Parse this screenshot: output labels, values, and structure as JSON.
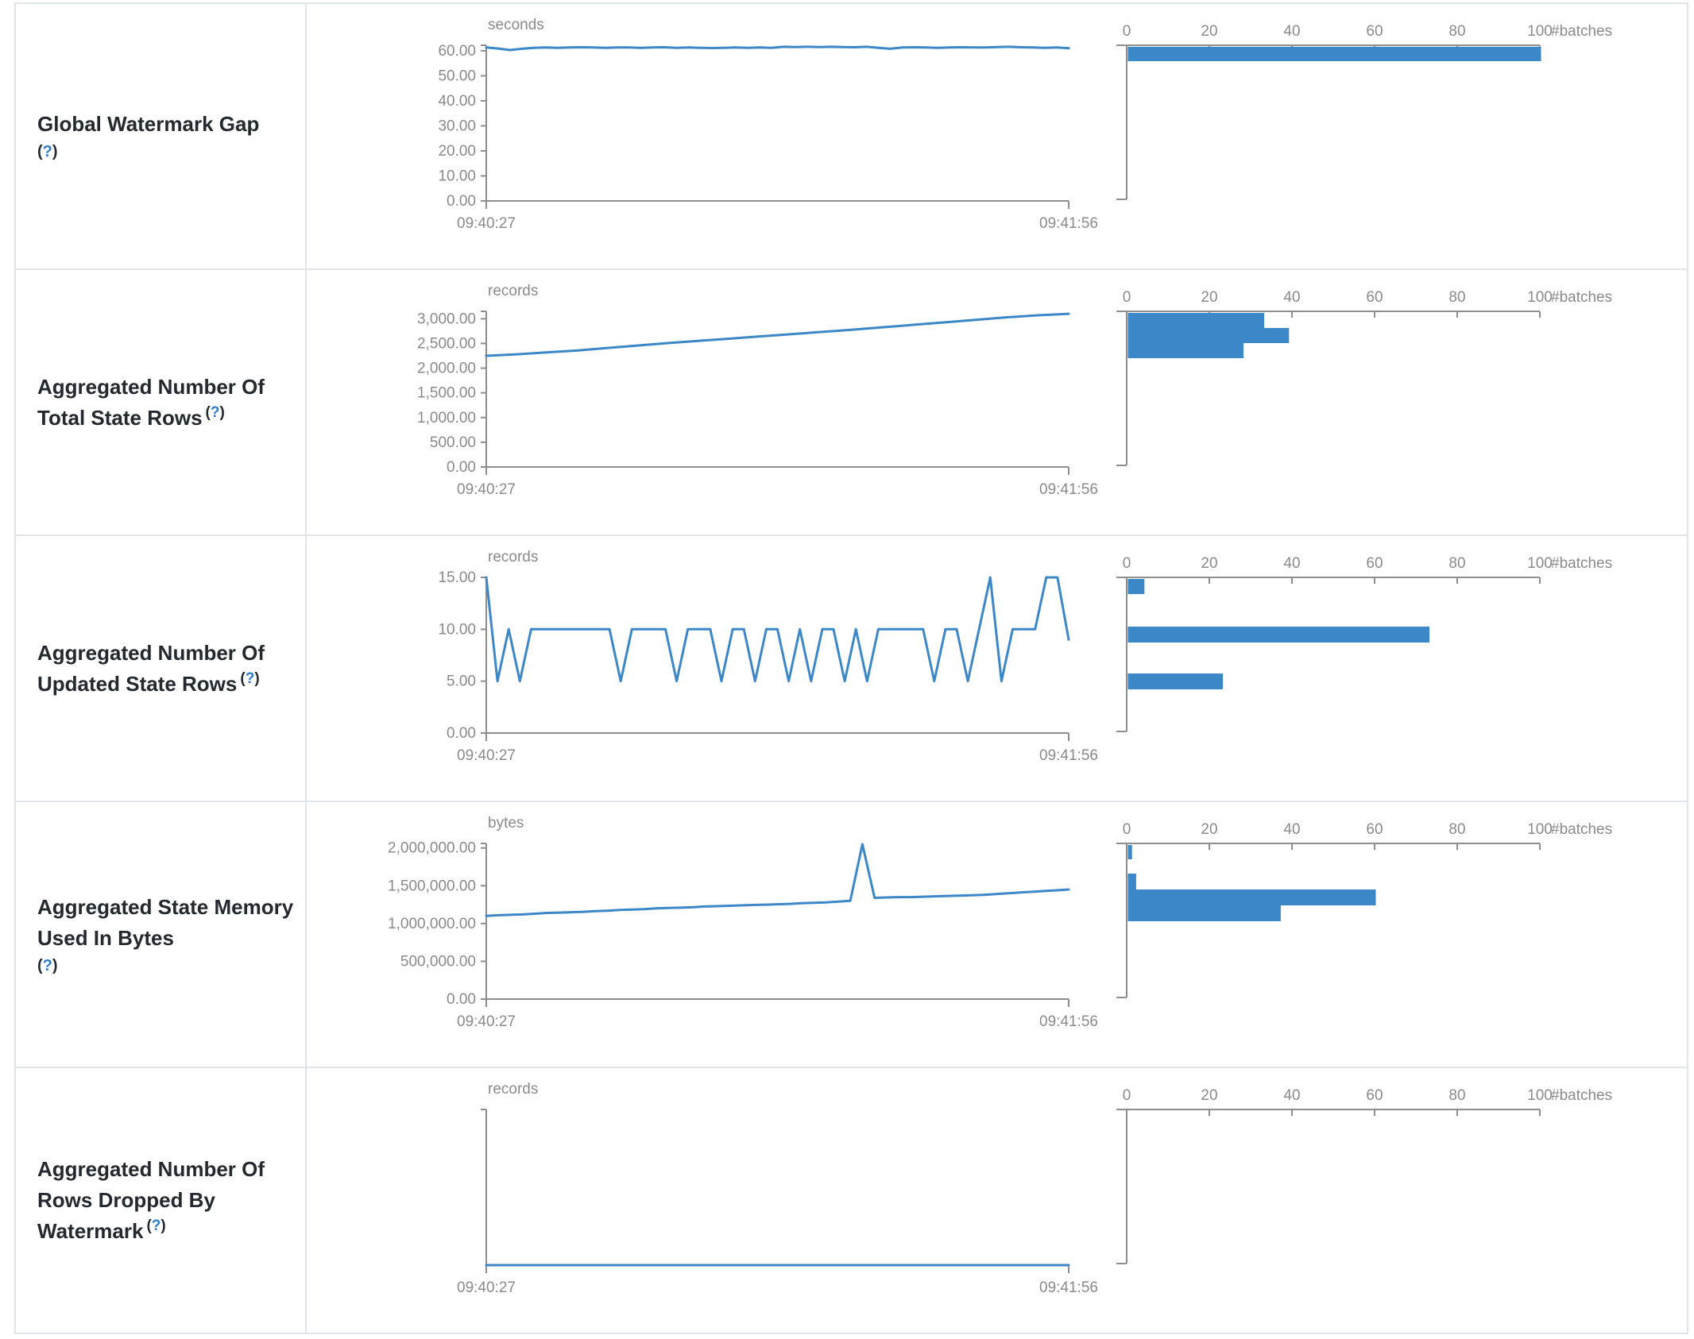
{
  "page": {
    "title": "Streaming Query Statistics"
  },
  "colors": {
    "accent": "#3c87c7",
    "axis": "#8e8e8e",
    "tick_text": "#8a8a8a",
    "label_text": "#24292f",
    "help_blue": "#2d7cd1",
    "border": "#e1e4e9"
  },
  "time_axis": {
    "start": "09:40:27",
    "end": "09:41:56"
  },
  "rows": [
    {
      "key": "global-watermark-gap",
      "label": "Global Watermark Gap",
      "help": "(?)",
      "help_placement": "block",
      "charts": {
        "line": {
          "type": "line",
          "unit": "seconds",
          "x_start": "09:40:27",
          "x_end": "09:41:56",
          "y_max": 62.2,
          "y_ticks": [
            {
              "value": 0,
              "label": "0.00"
            },
            {
              "value": 10,
              "label": "10.00"
            },
            {
              "value": 20,
              "label": "20.00"
            },
            {
              "value": 30,
              "label": "30.00"
            },
            {
              "value": 40,
              "label": "40.00"
            },
            {
              "value": 50,
              "label": "50.00"
            },
            {
              "value": 60,
              "label": "60.00"
            }
          ],
          "values": [
            61.3,
            60.9,
            60.3,
            60.8,
            61.2,
            61.3,
            61.2,
            61.3,
            61.4,
            61.3,
            61.2,
            61.3,
            61.3,
            61.2,
            61.3,
            61.4,
            61.2,
            61.3,
            61.2,
            61.1,
            61.2,
            61.3,
            61.2,
            61.3,
            61.2,
            61.6,
            61.5,
            61.6,
            61.5,
            61.6,
            61.5,
            61.4,
            61.6,
            61.2,
            60.8,
            61.3,
            61.4,
            61.3,
            61.2,
            61.3,
            61.4,
            61.3,
            61.3,
            61.5,
            61.6,
            61.4,
            61.3,
            61.2,
            61.3,
            61.0
          ]
        },
        "histogram": {
          "type": "bar",
          "x_label": "#batches",
          "x_ticks": [
            0,
            20,
            40,
            60,
            80,
            100
          ],
          "x_max": 100,
          "bars": [
            {
              "count": 100,
              "top": 54,
              "h": 18
            }
          ]
        }
      }
    },
    {
      "key": "aggregated-number-of-total-state-rows",
      "label": "Aggregated Number Of Total State Rows",
      "help": "(?)",
      "help_placement": "inline",
      "charts": {
        "line": {
          "type": "line",
          "unit": "records",
          "x_start": "09:40:27",
          "x_end": "09:41:56",
          "y_max": 3150,
          "y_ticks": [
            {
              "value": 0,
              "label": "0.00"
            },
            {
              "value": 500,
              "label": "500.00"
            },
            {
              "value": 1000,
              "label": "1,000.00"
            },
            {
              "value": 1500,
              "label": "1,500.00"
            },
            {
              "value": 2000,
              "label": "2,000.00"
            },
            {
              "value": 2500,
              "label": "2,500.00"
            },
            {
              "value": 3000,
              "label": "3,000.00"
            }
          ],
          "values": [
            2250,
            2280,
            2320,
            2360,
            2410,
            2460,
            2510,
            2555,
            2600,
            2645,
            2690,
            2735,
            2780,
            2830,
            2880,
            2930,
            2980,
            3030,
            3070,
            3100
          ]
        },
        "histogram": {
          "type": "bar",
          "x_label": "#batches",
          "x_ticks": [
            0,
            20,
            40,
            60,
            80,
            100
          ],
          "x_max": 100,
          "bars": [
            {
              "count": 33,
              "top": 54,
              "h": 19
            },
            {
              "count": 39,
              "top": 73,
              "h": 19
            },
            {
              "count": 28,
              "top": 92,
              "h": 19
            }
          ]
        }
      }
    },
    {
      "key": "aggregated-number-of-updated-state-rows",
      "label": "Aggregated Number Of Updated State Rows",
      "help": "(?)",
      "help_placement": "inline",
      "charts": {
        "line": {
          "type": "line",
          "unit": "records",
          "x_start": "09:40:27",
          "x_end": "09:41:56",
          "y_max": 15,
          "y_ticks": [
            {
              "value": 0,
              "label": "0.00"
            },
            {
              "value": 5,
              "label": "5.00"
            },
            {
              "value": 10,
              "label": "10.00"
            },
            {
              "value": 15,
              "label": "15.00"
            }
          ],
          "values": [
            15,
            5,
            10,
            5,
            10,
            10,
            10,
            10,
            10,
            10,
            10,
            10,
            5,
            10,
            10,
            10,
            10,
            5,
            10,
            10,
            10,
            5,
            10,
            10,
            5,
            10,
            10,
            5,
            10,
            5,
            10,
            10,
            5,
            10,
            5,
            10,
            10,
            10,
            10,
            10,
            5,
            10,
            10,
            5,
            10,
            15,
            5,
            10,
            10,
            10,
            15,
            15,
            9
          ]
        },
        "histogram": {
          "type": "bar",
          "x_label": "#batches",
          "x_ticks": [
            0,
            20,
            40,
            60,
            80,
            100
          ],
          "x_max": 100,
          "bars": [
            {
              "count": 4,
              "top": 54,
              "h": 19
            },
            {
              "count": 73,
              "top": 114,
              "h": 20
            },
            {
              "count": 23,
              "top": 173,
              "h": 20
            }
          ]
        }
      }
    },
    {
      "key": "aggregated-state-memory-used-in-bytes",
      "label": "Aggregated State Memory Used In Bytes",
      "help": "(?)",
      "help_placement": "block",
      "charts": {
        "line": {
          "type": "line",
          "unit": "bytes",
          "x_start": "09:40:27",
          "x_end": "09:41:56",
          "y_max": 2060000,
          "y_ticks": [
            {
              "value": 0,
              "label": "0.00"
            },
            {
              "value": 500000,
              "label": "500,000.00"
            },
            {
              "value": 1000000,
              "label": "1,000,000.00"
            },
            {
              "value": 1500000,
              "label": "1,500,000.00"
            },
            {
              "value": 2000000,
              "label": "2,000,000.00"
            }
          ],
          "values": [
            1100000,
            1110000,
            1115000,
            1120000,
            1130000,
            1140000,
            1145000,
            1150000,
            1155000,
            1165000,
            1170000,
            1180000,
            1185000,
            1190000,
            1200000,
            1205000,
            1210000,
            1215000,
            1225000,
            1230000,
            1235000,
            1240000,
            1245000,
            1250000,
            1255000,
            1260000,
            1270000,
            1275000,
            1280000,
            1290000,
            1300000,
            2050000,
            1340000,
            1345000,
            1350000,
            1350000,
            1355000,
            1360000,
            1365000,
            1370000,
            1375000,
            1380000,
            1390000,
            1400000,
            1410000,
            1420000,
            1430000,
            1440000,
            1450000
          ]
        },
        "histogram": {
          "type": "bar",
          "x_label": "#batches",
          "x_ticks": [
            0,
            20,
            40,
            60,
            80,
            100
          ],
          "x_max": 100,
          "bars": [
            {
              "count": 1,
              "top": 54,
              "h": 18
            },
            {
              "count": 2,
              "top": 90,
              "h": 20
            },
            {
              "count": 60,
              "top": 110,
              "h": 20
            },
            {
              "count": 37,
              "top": 130,
              "h": 20
            }
          ]
        }
      }
    },
    {
      "key": "aggregated-number-of-rows-dropped-by-watermark",
      "label": "Aggregated Number Of Rows Dropped By Watermark",
      "help": "(?)",
      "help_placement": "inline",
      "charts": {
        "line": {
          "type": "line",
          "unit": "records",
          "x_start": "09:40:27",
          "x_end": "09:41:56",
          "y_max": 1,
          "y_ticks": [],
          "values": [
            0,
            0
          ]
        },
        "histogram": {
          "type": "bar",
          "x_label": "#batches",
          "x_ticks": [
            0,
            20,
            40,
            60,
            80,
            100
          ],
          "x_max": 100,
          "bars": []
        }
      }
    }
  ]
}
